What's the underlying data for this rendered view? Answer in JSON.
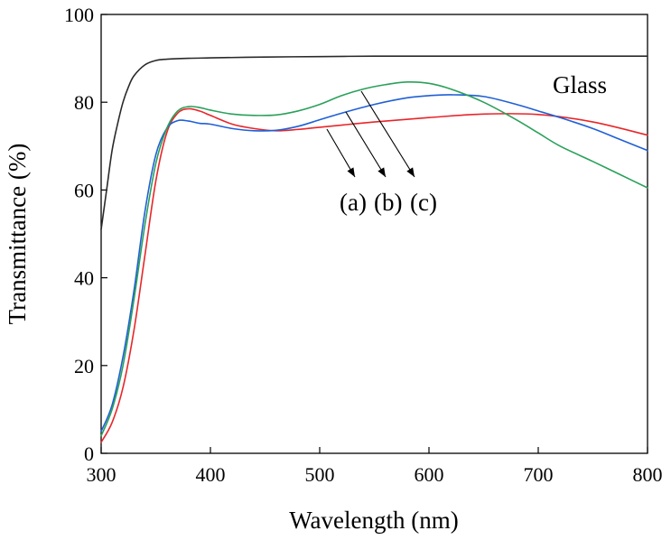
{
  "chart_data": {
    "type": "line",
    "title": "",
    "xlabel": "Wavelength (nm)",
    "ylabel": "Transmittance (%)",
    "xlim": [
      300,
      800
    ],
    "ylim": [
      0,
      100
    ],
    "xticks": [
      300,
      400,
      500,
      600,
      700,
      800
    ],
    "yticks": [
      0,
      20,
      40,
      60,
      80,
      100
    ],
    "xtick_labels": [
      "300",
      "400",
      "500",
      "600",
      "700",
      "800"
    ],
    "ytick_labels": [
      "0",
      "20",
      "40",
      "60",
      "80",
      "100"
    ],
    "grid": false,
    "series": [
      {
        "name": "Glass",
        "color": "#2a2a2a",
        "points": [
          [
            300,
            51
          ],
          [
            305,
            60
          ],
          [
            310,
            69
          ],
          [
            315,
            75
          ],
          [
            320,
            80
          ],
          [
            325,
            83.5
          ],
          [
            330,
            86
          ],
          [
            340,
            88.5
          ],
          [
            350,
            89.5
          ],
          [
            360,
            89.8
          ],
          [
            380,
            90
          ],
          [
            400,
            90.1
          ],
          [
            450,
            90.3
          ],
          [
            500,
            90.4
          ],
          [
            550,
            90.5
          ],
          [
            600,
            90.5
          ],
          [
            650,
            90.5
          ],
          [
            700,
            90.5
          ],
          [
            750,
            90.5
          ],
          [
            800,
            90.5
          ]
        ]
      },
      {
        "name": "(a)",
        "color": "#e8262a",
        "points": [
          [
            300,
            2.5
          ],
          [
            310,
            7
          ],
          [
            320,
            15
          ],
          [
            330,
            28
          ],
          [
            340,
            45
          ],
          [
            350,
            62
          ],
          [
            360,
            73
          ],
          [
            370,
            77.5
          ],
          [
            380,
            78.5
          ],
          [
            390,
            78
          ],
          [
            400,
            77
          ],
          [
            420,
            75
          ],
          [
            440,
            74
          ],
          [
            460,
            73.5
          ],
          [
            480,
            73.8
          ],
          [
            500,
            74.3
          ],
          [
            550,
            75.5
          ],
          [
            600,
            76.5
          ],
          [
            650,
            77.3
          ],
          [
            700,
            77.2
          ],
          [
            750,
            75.5
          ],
          [
            800,
            72.5
          ]
        ]
      },
      {
        "name": "(b)",
        "color": "#1f5fd6",
        "points": [
          [
            300,
            5
          ],
          [
            310,
            11
          ],
          [
            320,
            22
          ],
          [
            330,
            37
          ],
          [
            340,
            55
          ],
          [
            350,
            68
          ],
          [
            360,
            74
          ],
          [
            370,
            75.8
          ],
          [
            380,
            75.7
          ],
          [
            390,
            75.2
          ],
          [
            400,
            75
          ],
          [
            420,
            74
          ],
          [
            440,
            73.5
          ],
          [
            460,
            73.6
          ],
          [
            480,
            74.5
          ],
          [
            500,
            76
          ],
          [
            520,
            77.5
          ],
          [
            550,
            79.5
          ],
          [
            580,
            81
          ],
          [
            600,
            81.5
          ],
          [
            620,
            81.7
          ],
          [
            650,
            81.3
          ],
          [
            680,
            79.5
          ],
          [
            700,
            78
          ],
          [
            720,
            76.5
          ],
          [
            750,
            74
          ],
          [
            775,
            71.5
          ],
          [
            800,
            69
          ]
        ]
      },
      {
        "name": "(c)",
        "color": "#2aa05a",
        "points": [
          [
            300,
            4
          ],
          [
            310,
            10
          ],
          [
            320,
            20
          ],
          [
            330,
            35
          ],
          [
            340,
            52
          ],
          [
            350,
            66
          ],
          [
            360,
            74
          ],
          [
            370,
            78
          ],
          [
            380,
            79
          ],
          [
            390,
            78.8
          ],
          [
            400,
            78.2
          ],
          [
            420,
            77.3
          ],
          [
            440,
            77
          ],
          [
            460,
            77.1
          ],
          [
            480,
            78
          ],
          [
            500,
            79.5
          ],
          [
            520,
            81.5
          ],
          [
            540,
            83
          ],
          [
            560,
            84
          ],
          [
            580,
            84.6
          ],
          [
            600,
            84.3
          ],
          [
            620,
            83
          ],
          [
            650,
            80
          ],
          [
            680,
            76
          ],
          [
            700,
            73
          ],
          [
            720,
            70
          ],
          [
            750,
            66.5
          ],
          [
            775,
            63.5
          ],
          [
            800,
            60.5
          ]
        ]
      }
    ],
    "annotations": {
      "glass_label": "Glass",
      "series_labels": [
        "(a)",
        "(b)",
        "(c)"
      ]
    }
  }
}
